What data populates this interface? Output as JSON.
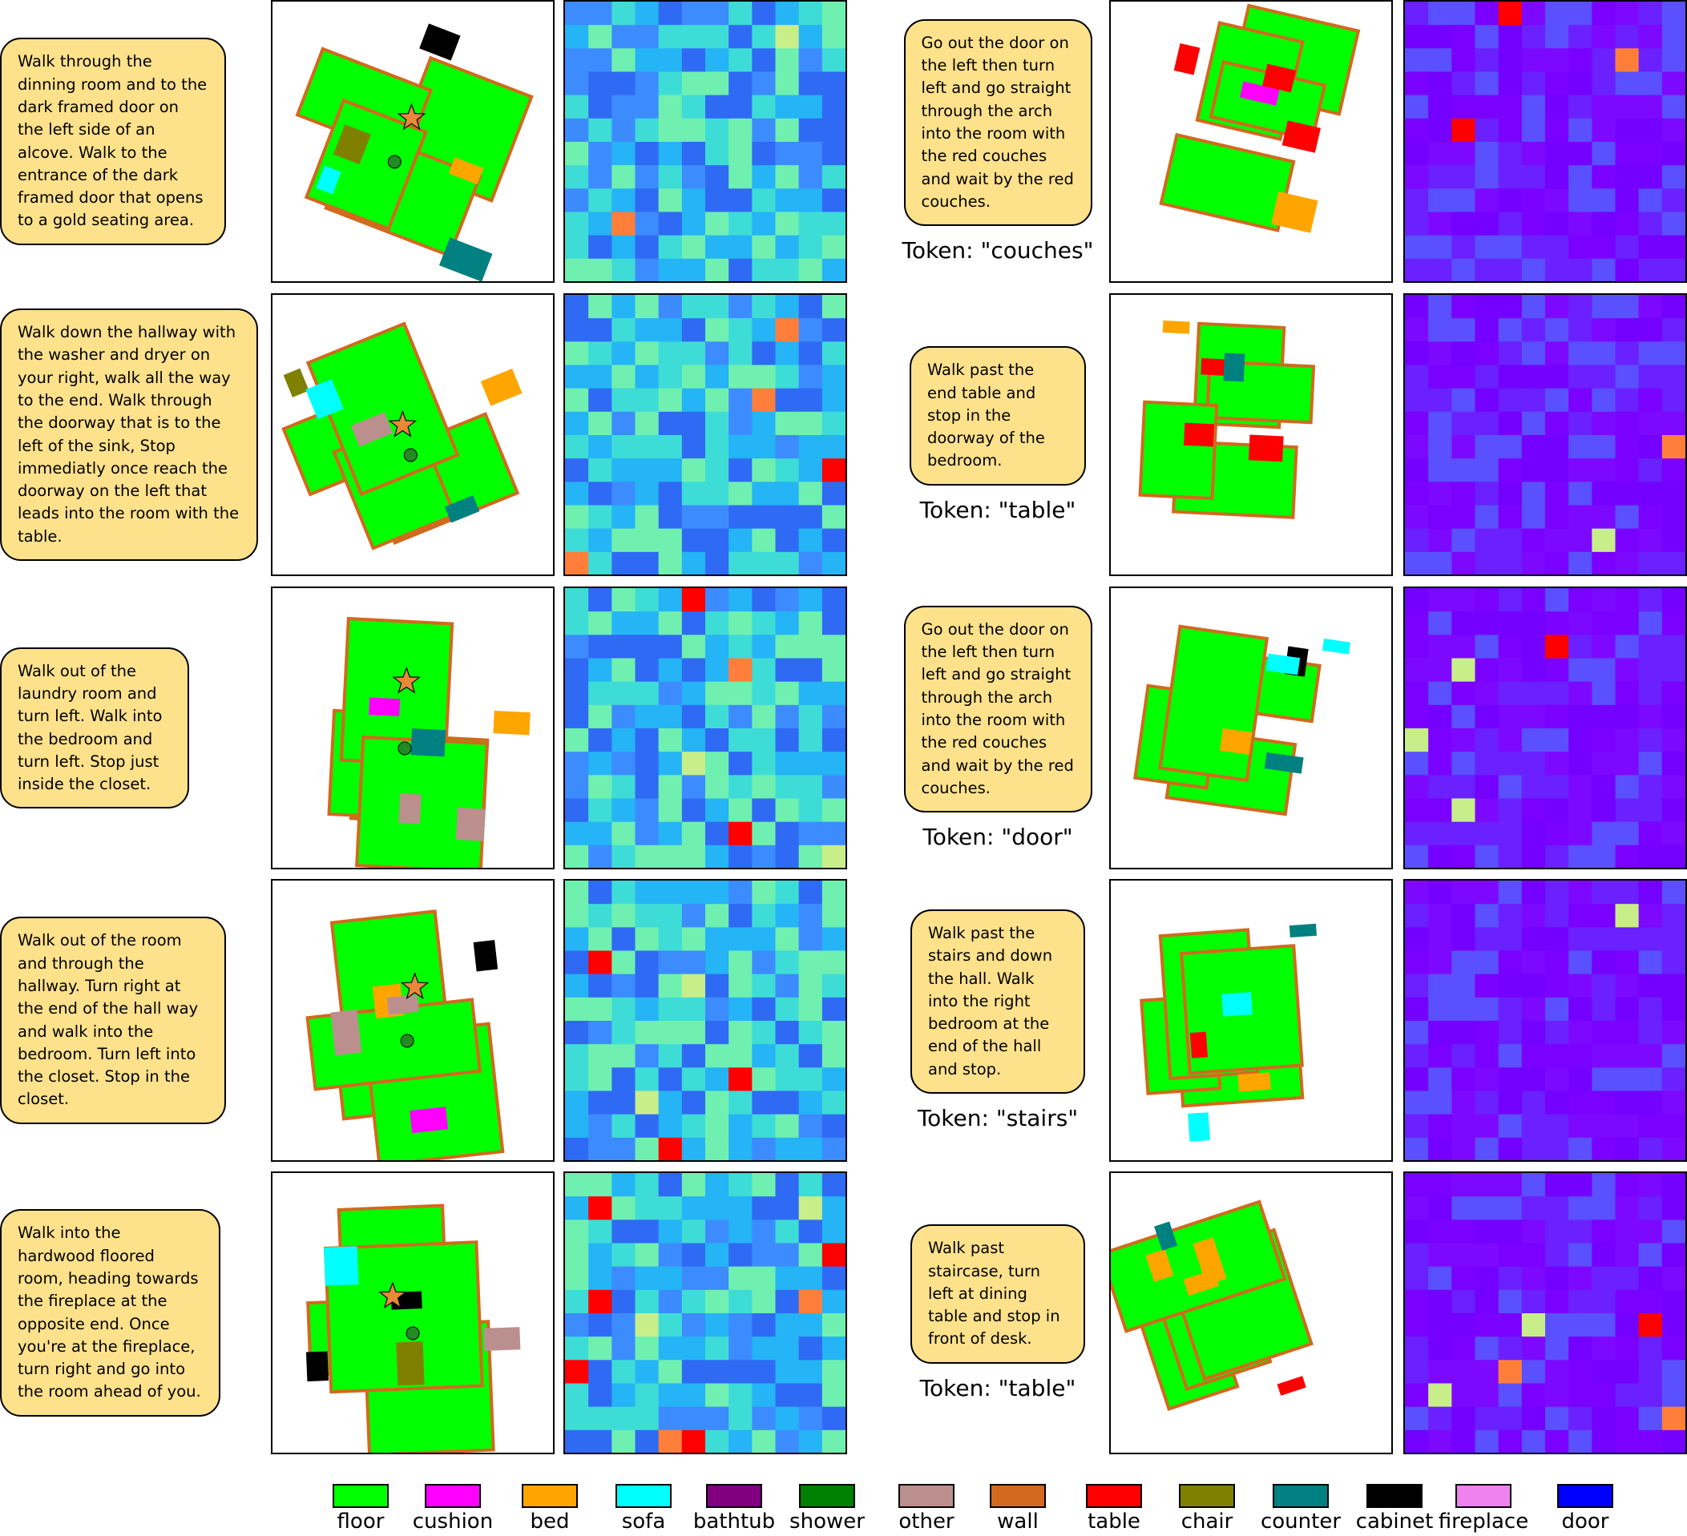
{
  "rows": [
    {
      "left": {
        "instruction": "Walk through the dinning room and to the dark framed door on the left side of an alcove. Walk to the entrance of the dark framed door that opens to a gold seating area."
      },
      "right": {
        "instruction": "Go out the door on the left then turn left and go straight through the arch into the room with the red couches and wait by the red couches.",
        "token": "Token: \"couches\""
      }
    },
    {
      "left": {
        "instruction": "Walk down the hallway with the washer and dryer on your right, walk all the way to the end. Walk through the doorway that is to the left of the sink, Stop immediatly once reach the doorway on the left that leads into the room with the table."
      },
      "right": {
        "instruction": "Walk past the end table and stop in the doorway of the bedroom.",
        "token": "Token: \"table\""
      }
    },
    {
      "left": {
        "instruction": "Walk out of the laundry room and turn left. Walk into the bedroom and turn left. Stop just inside the closet."
      },
      "right": {
        "instruction": "Go out the door on the left then turn left and go straight through the arch into the room with the red couches and wait by the red couches.",
        "token": "Token: \"door\""
      }
    },
    {
      "left": {
        "instruction": "Walk out of the room and through the hallway. Turn right at the end of the hall way and walk into the bedroom. Turn left into the closet. Stop in the closet."
      },
      "right": {
        "instruction": "Walk past the stairs and down the hall. Walk into the right bedroom at the end of the hall and stop.",
        "token": "Token: \"stairs\""
      }
    },
    {
      "left": {
        "instruction": "Walk into the hardwood floored room, heading towards the fireplace at the opposite end. Once you're at the fireplace, turn right and go into the room ahead of you."
      },
      "right": {
        "instruction": "Walk past staircase, turn left at dining table and stop in front of desk.",
        "token": "Token: \"table\""
      }
    }
  ],
  "legend": [
    {
      "label": "floor",
      "color": "#00ff00"
    },
    {
      "label": "cushion",
      "color": "#ff00ff"
    },
    {
      "label": "bed",
      "color": "#ffa500"
    },
    {
      "label": "sofa",
      "color": "#00ffff"
    },
    {
      "label": "bathtub",
      "color": "#800080"
    },
    {
      "label": "shower",
      "color": "#008000"
    },
    {
      "label": "other",
      "color": "#bc8f8f"
    },
    {
      "label": "wall",
      "color": "#d2691e"
    },
    {
      "label": "table",
      "color": "#ff0000"
    },
    {
      "label": "chair",
      "color": "#808000"
    },
    {
      "label": "counter",
      "color": "#008080"
    },
    {
      "label": "cabinet",
      "color": "#000000"
    },
    {
      "label": "fireplace",
      "color": "#ee82ee"
    },
    {
      "label": "door",
      "color": "#0000ff"
    }
  ]
}
